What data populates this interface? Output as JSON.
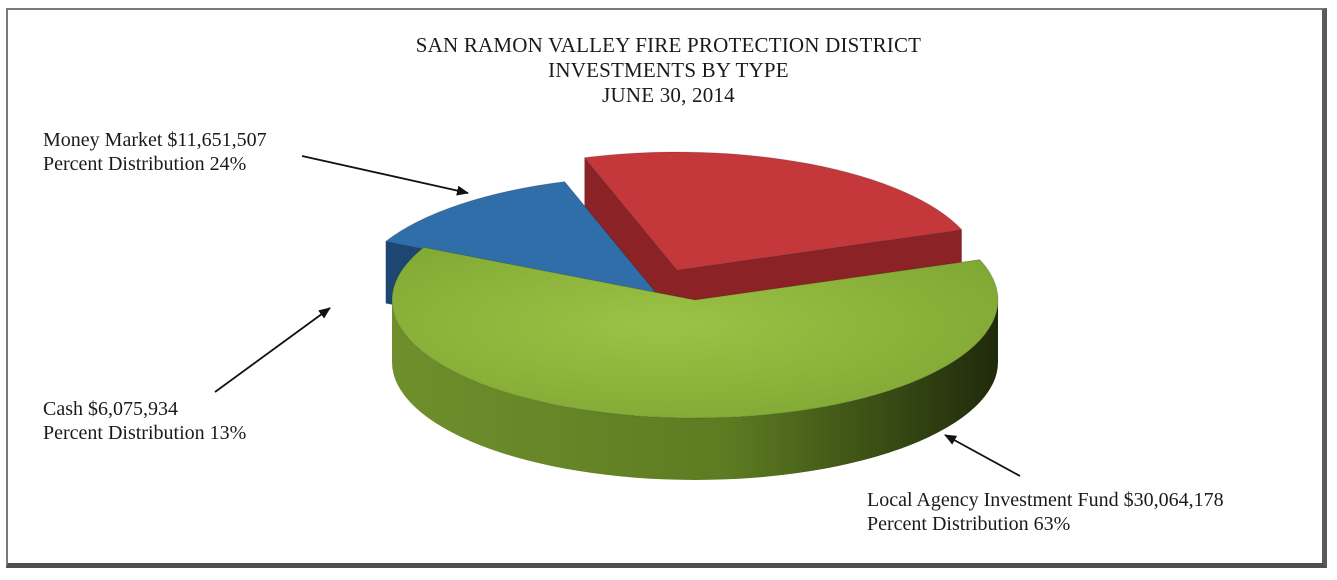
{
  "chart_data": {
    "type": "pie",
    "style": "3d-exploded",
    "title": [
      "SAN RAMON VALLEY FIRE PROTECTION DISTRICT",
      "INVESTMENTS BY TYPE",
      "JUNE 30, 2014"
    ],
    "slices": [
      {
        "name": "Local Agency Investment Fund",
        "amount": "$30,064,178",
        "percent_label": "Percent Distribution 63%",
        "value": 30064178,
        "percent": 63,
        "color": "#8db33b",
        "side_color": "#5f7a23"
      },
      {
        "name": "Cash",
        "amount": "$6,075,934",
        "percent_label": "Percent Distribution 13%",
        "value": 6075934,
        "percent": 13,
        "color": "#2f6ea8",
        "side_color": "#1e4673"
      },
      {
        "name": "Money Market",
        "amount": "$11,651,507",
        "percent_label": "Percent Distribution 24%",
        "value": 11651507,
        "percent": 24,
        "color": "#c4383c",
        "side_color": "#8a2226"
      }
    ],
    "legend": "none"
  }
}
